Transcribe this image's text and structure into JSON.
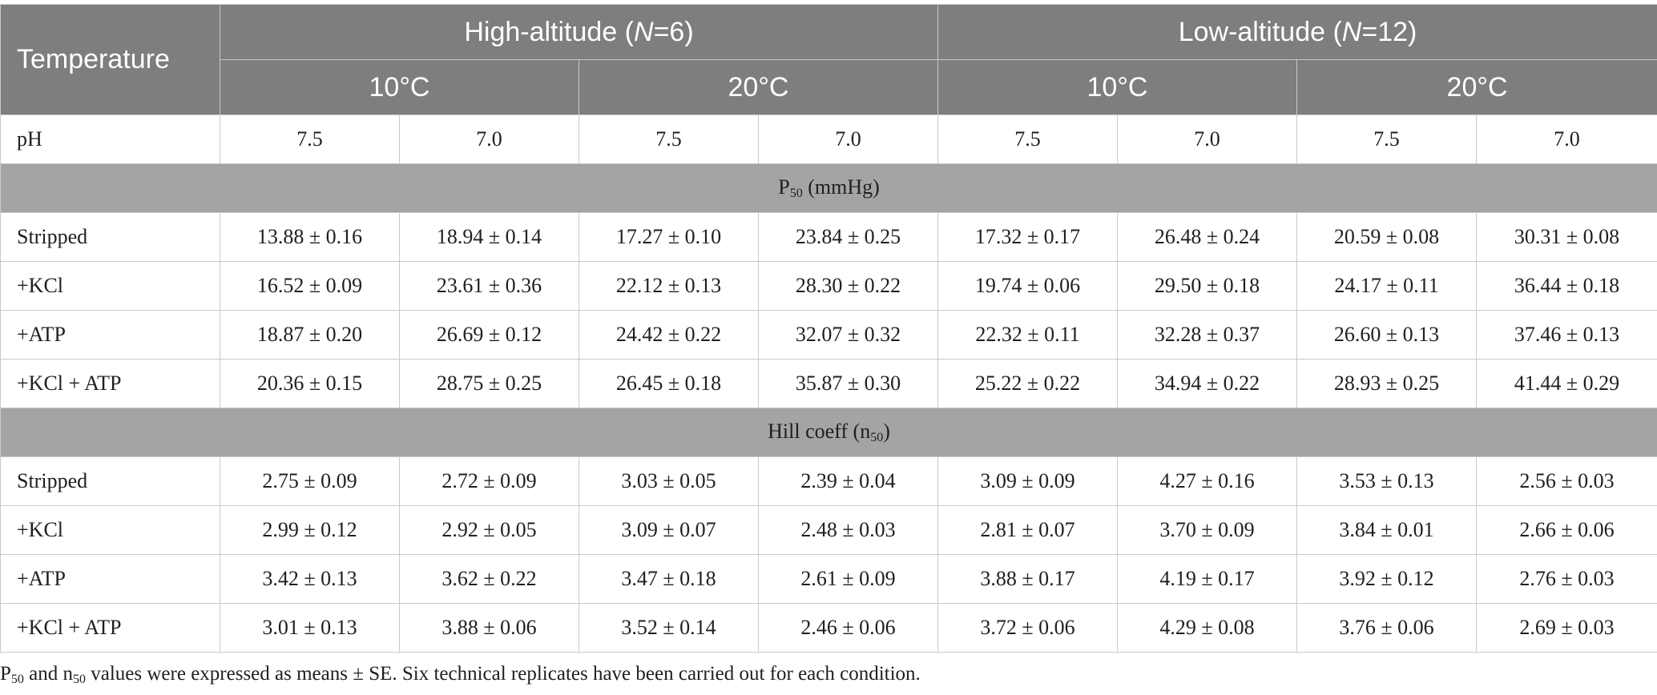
{
  "header": {
    "temperature_label": "Temperature",
    "high_group": {
      "label_prefix": "High-altitude (",
      "n_symbol": "N",
      "label_suffix": "=6)"
    },
    "low_group": {
      "label_prefix": "Low-altitude (",
      "n_symbol": "N",
      "label_suffix": "=12)"
    },
    "temps": [
      "10°C",
      "20°C",
      "10°C",
      "20°C"
    ]
  },
  "ph": {
    "label": "pH",
    "values": [
      "7.5",
      "7.0",
      "7.5",
      "7.0",
      "7.5",
      "7.0",
      "7.5",
      "7.0"
    ]
  },
  "sections": [
    {
      "title_main": "P",
      "title_sub": "50",
      "title_rest": " (mmHg)",
      "rows": [
        {
          "label": "Stripped",
          "values": [
            "13.88 ± 0.16",
            "18.94 ± 0.14",
            "17.27 ± 0.10",
            "23.84 ± 0.25",
            "17.32 ± 0.17",
            "26.48 ± 0.24",
            "20.59 ± 0.08",
            "30.31 ± 0.08"
          ]
        },
        {
          "label": "+KCl",
          "values": [
            "16.52 ± 0.09",
            "23.61 ± 0.36",
            "22.12 ± 0.13",
            "28.30 ± 0.22",
            "19.74 ± 0.06",
            "29.50 ± 0.18",
            "24.17 ± 0.11",
            "36.44 ± 0.18"
          ]
        },
        {
          "label": "+ATP",
          "values": [
            "18.87 ± 0.20",
            "26.69 ± 0.12",
            "24.42 ± 0.22",
            "32.07 ± 0.32",
            "22.32 ± 0.11",
            "32.28 ± 0.37",
            "26.60 ± 0.13",
            "37.46 ± 0.13"
          ]
        },
        {
          "label": "+KCl + ATP",
          "values": [
            "20.36 ± 0.15",
            "28.75 ± 0.25",
            "26.45 ± 0.18",
            "35.87 ± 0.30",
            "25.22 ± 0.22",
            "34.94 ± 0.22",
            "28.93 ± 0.25",
            "41.44 ± 0.29"
          ]
        }
      ]
    },
    {
      "title_main": "Hill coeff (n",
      "title_sub": "50",
      "title_rest": ")",
      "rows": [
        {
          "label": "Stripped",
          "values": [
            "2.75 ± 0.09",
            "2.72 ± 0.09",
            "3.03 ± 0.05",
            "2.39 ± 0.04",
            "3.09 ± 0.09",
            "4.27 ± 0.16",
            "3.53 ± 0.13",
            "2.56 ± 0.03"
          ]
        },
        {
          "label": "+KCl",
          "values": [
            "2.99 ± 0.12",
            "2.92 ± 0.05",
            "3.09 ± 0.07",
            "2.48 ± 0.03",
            "2.81 ± 0.07",
            "3.70 ± 0.09",
            "3.84 ± 0.01",
            "2.66 ± 0.06"
          ]
        },
        {
          "label": "+ATP",
          "values": [
            "3.42 ± 0.13",
            "3.62 ± 0.22",
            "3.47 ± 0.18",
            "2.61 ± 0.09",
            "3.88 ± 0.17",
            "4.19 ± 0.17",
            "3.92 ± 0.12",
            "2.76 ± 0.03"
          ]
        },
        {
          "label": "+KCl + ATP",
          "values": [
            "3.01 ± 0.13",
            "3.88 ± 0.06",
            "3.52 ± 0.14",
            "2.46 ± 0.06",
            "3.72 ± 0.06",
            "4.29 ± 0.08",
            "3.76 ± 0.06",
            "2.69 ± 0.03"
          ]
        }
      ]
    }
  ],
  "footnote": {
    "p": "P",
    "p_sub": "50",
    "and": " and n",
    "n_sub": "50",
    "rest": " values were expressed as means ± SE. Six technical replicates have been carried out for each condition."
  },
  "colors": {
    "header_bg": "#7d7e7d",
    "section_bg": "#a3a4a3",
    "grid": "#c9c9c9"
  }
}
